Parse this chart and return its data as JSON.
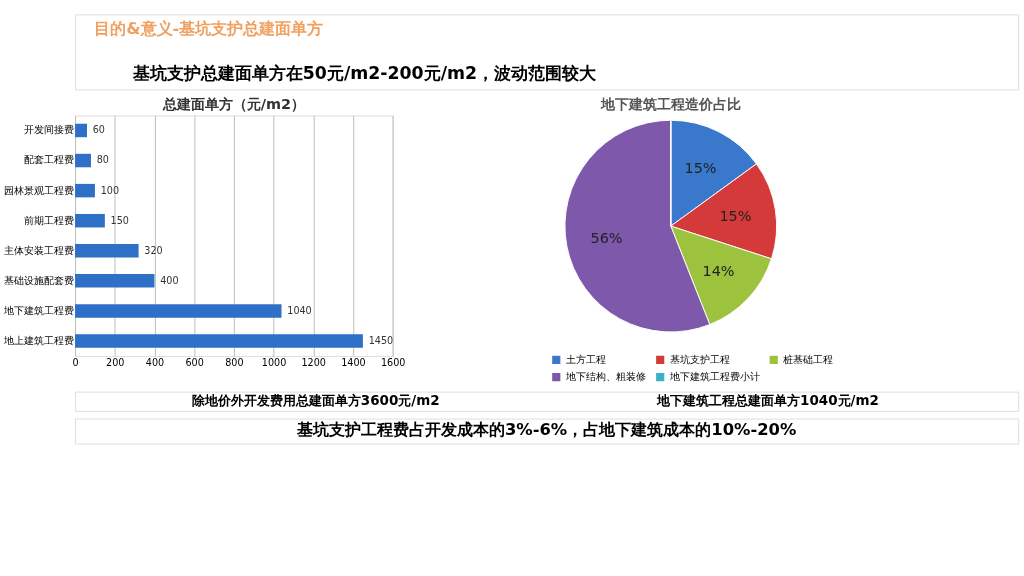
{
  "chart_data": [
    {
      "type": "bar",
      "orientation": "horizontal",
      "title": "总建面单方（元/m2）",
      "categories": [
        "开发间接费",
        "配套工程费",
        "园林景观工程费",
        "前期工程费",
        "主体安装工程费",
        "基础设施配套费",
        "地下建筑工程费",
        "地上建筑工程费"
      ],
      "values": [
        60,
        80,
        100,
        150,
        320,
        400,
        1040,
        1450
      ],
      "color": "#2e6fc8",
      "xlim": [
        0,
        1600
      ],
      "xticks": [
        0,
        200,
        400,
        600,
        800,
        1000,
        1200,
        1400,
        1600
      ],
      "grid": "x",
      "data_labels": true,
      "annotations": [
        "目的&意义-基坑支护总建面单方",
        "基坑支护总建面单方在50元/m2-200元/m2，波动范围较大",
        "除地价外开发费用总建面单方3600元/m2",
        "基坑支护工程费占开发成本的3%-6%，占地下建筑成本的10%-20%"
      ]
    },
    {
      "type": "pie",
      "title": "地下建筑工程造价占比",
      "categories": [
        "土方工程",
        "基坑支护工程",
        "桩基础工程",
        "地下结构、粗装修",
        "地下建筑工程费小计"
      ],
      "values": [
        15,
        15,
        14,
        56,
        0
      ],
      "colors": [
        "#3a78cc",
        "#d43a3a",
        "#9cc23e",
        "#7d58ab",
        "#3bb0c8"
      ],
      "value_labels": [
        "15%",
        "15%",
        "14%",
        "56%",
        null
      ],
      "legend": "bottom",
      "annotations": [
        "地下建筑工程总建面单方1040元/m2"
      ]
    }
  ]
}
